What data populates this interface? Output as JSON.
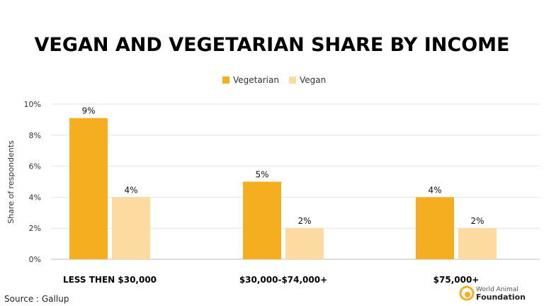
{
  "chart_data": {
    "type": "bar",
    "title": "VEGAN AND VEGETARIAN SHARE BY INCOME",
    "ylabel": "Share of respondents",
    "xlabel": "",
    "ylim": [
      0,
      10
    ],
    "yticks": [
      "0%",
      "2%",
      "4%",
      "6%",
      "8%",
      "10%"
    ],
    "ytick_values": [
      0,
      2,
      4,
      6,
      8,
      10
    ],
    "grid": true,
    "legend_position": "top-center",
    "categories": [
      "LESS THEN $30,000",
      "$30,000-$74,000+",
      "$75,000+"
    ],
    "series": [
      {
        "name": "Vegetarian",
        "color": "#F5AE1F",
        "values": [
          9.1,
          5,
          4
        ],
        "labels": [
          "9%",
          "5%",
          "4%"
        ]
      },
      {
        "name": "Vegan",
        "color": "#FDDAA0",
        "values": [
          4,
          2,
          2
        ],
        "labels": [
          "4%",
          "2%",
          "2%"
        ]
      }
    ]
  },
  "source": "Source : Gallup",
  "logo": {
    "line1": "World Animal",
    "line2": "Foundation",
    "color": "#F5AE1F"
  }
}
